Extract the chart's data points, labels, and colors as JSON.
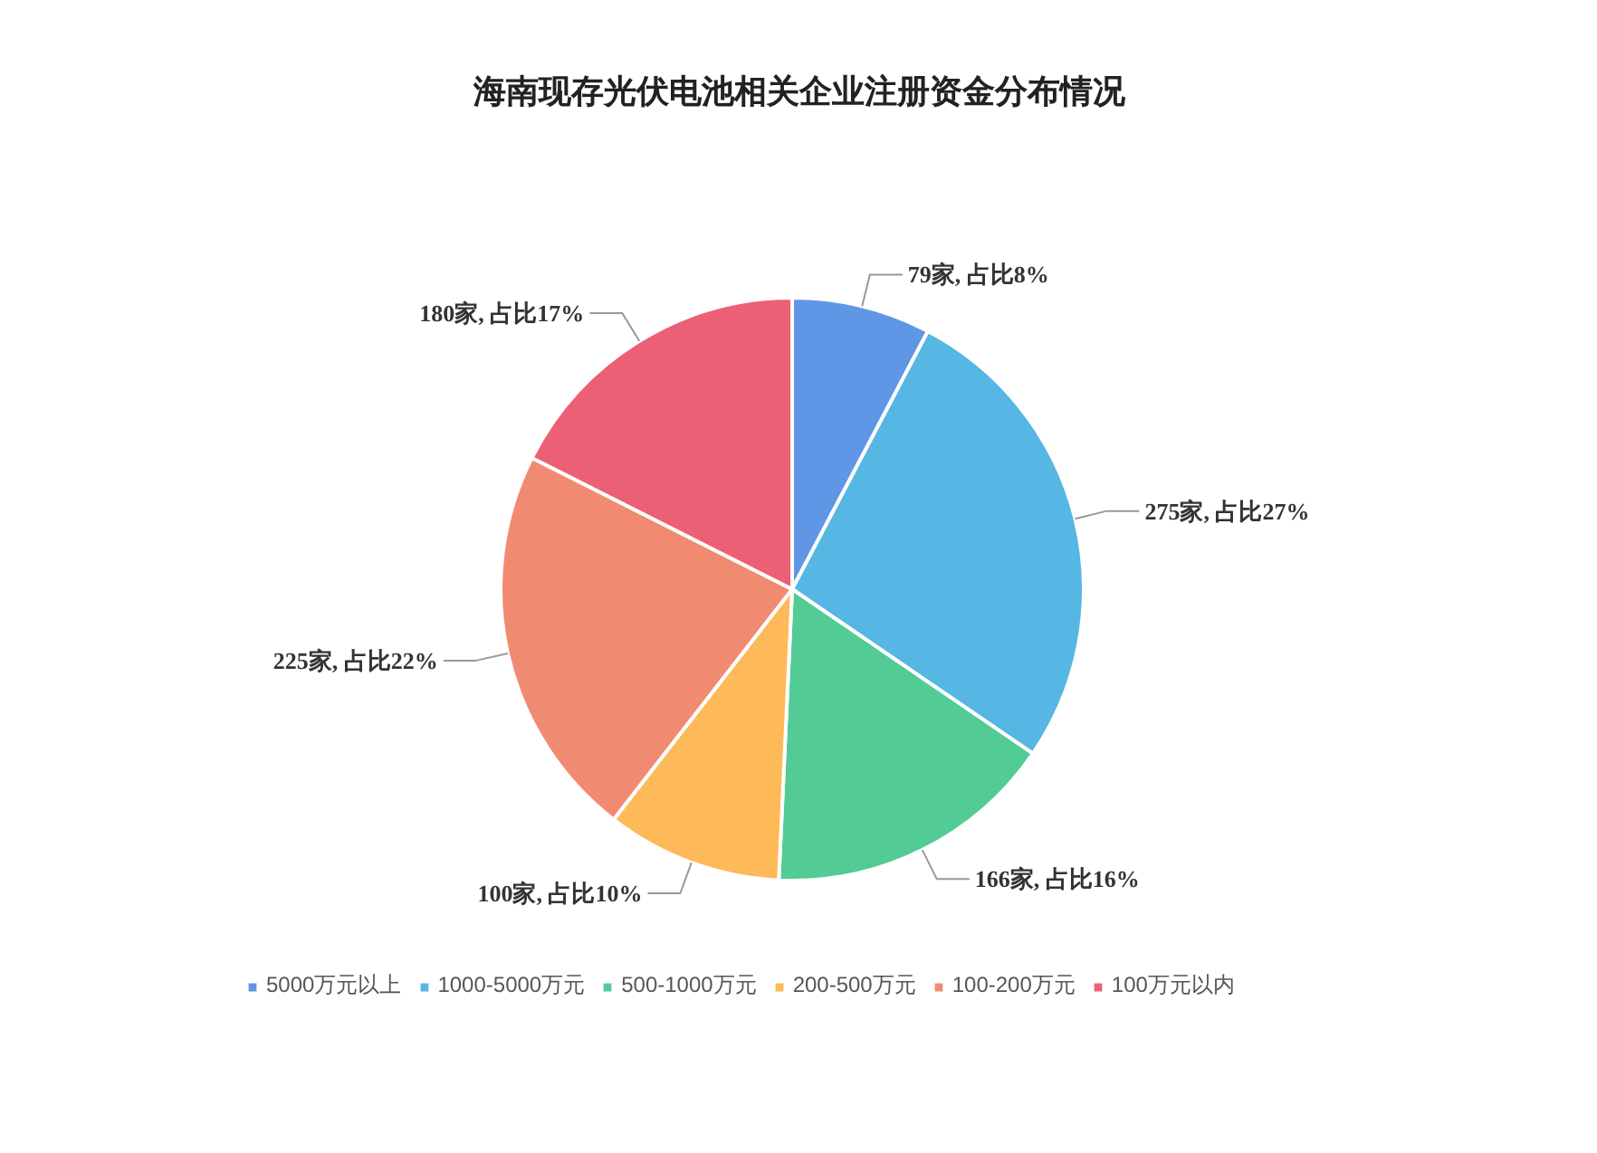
{
  "chart_data": {
    "type": "pie",
    "title": "海南现存光伏电池相关企业注册资金分布情况",
    "categories": [
      "5000万元以上",
      "1000-5000万元",
      "500-1000万元",
      "200-500万元",
      "100-200万元",
      "100万元以内"
    ],
    "values": [
      79,
      275,
      166,
      100,
      225,
      180
    ],
    "value_labels": [
      "79家, 占比8%",
      "275家, 占比27%",
      "166家, 占比16%",
      "100家, 占比10%",
      "225家, 占比22%",
      "180家, 占比17%"
    ],
    "colors": [
      "#6096e6",
      "#56b6e4",
      "#53cb94",
      "#feb958",
      "#f08b72",
      "#ec6075"
    ],
    "legend": "bottom"
  }
}
